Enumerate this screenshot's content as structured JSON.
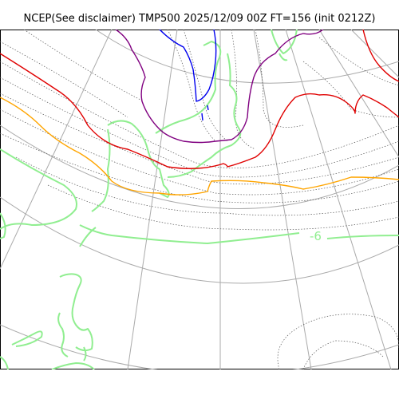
{
  "title": "NCEP(See disclaimer) TMP500 2025/12/09 00Z FT=156 (init 0212Z)",
  "contour_label": "-6",
  "colors": {
    "graticule": "#aaaaaa",
    "coastline": "#90ee90",
    "dotted_contour": "#555555",
    "isotherm_red": "#e00000",
    "isotherm_orange": "#ffa500",
    "isotherm_purple": "#800080",
    "isotherm_blue": "#0000ee",
    "label": "#90ee90"
  }
}
